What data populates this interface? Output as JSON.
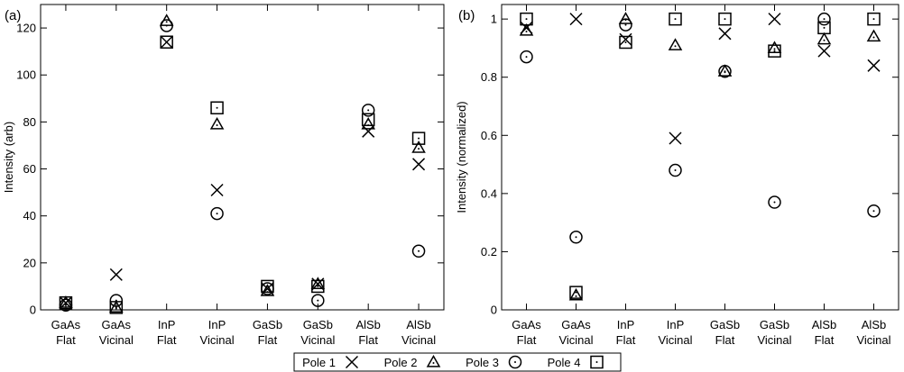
{
  "chart_data": [
    {
      "type": "scatter",
      "panel_label": "(a)",
      "ylabel": "Intensity (arb)",
      "ylim": [
        0,
        130
      ],
      "yticks": [
        0,
        20,
        40,
        60,
        80,
        100,
        120
      ],
      "grid": false,
      "categories": [
        [
          "GaAs",
          "Flat"
        ],
        [
          "GaAs",
          "Vicinal"
        ],
        [
          "InP",
          "Flat"
        ],
        [
          "InP",
          "Vicinal"
        ],
        [
          "GaSb",
          "Flat"
        ],
        [
          "GaSb",
          "Vicinal"
        ],
        [
          "AlSb",
          "Flat"
        ],
        [
          "AlSb",
          "Vicinal"
        ]
      ],
      "series": [
        {
          "name": "Pole 1",
          "marker": "cross",
          "values": [
            3,
            15,
            114,
            51,
            9,
            11,
            76,
            62
          ]
        },
        {
          "name": "Pole 2",
          "marker": "triangle",
          "values": [
            3,
            1,
            123,
            79,
            8,
            11,
            79,
            69
          ]
        },
        {
          "name": "Pole 3",
          "marker": "circle",
          "values": [
            2,
            4,
            121,
            41,
            9,
            4,
            85,
            25
          ]
        },
        {
          "name": "Pole 4",
          "marker": "square",
          "values": [
            3,
            1,
            114,
            86,
            10,
            10,
            81,
            73
          ]
        }
      ]
    },
    {
      "type": "scatter",
      "panel_label": "(b)",
      "ylabel": "Intensity (normalized)",
      "ylim": [
        0,
        1.05
      ],
      "yticks": [
        0,
        0.2,
        0.4,
        0.6,
        0.8,
        1
      ],
      "grid": false,
      "categories": [
        [
          "GaAs",
          "Flat"
        ],
        [
          "GaAs",
          "Vicinal"
        ],
        [
          "InP",
          "Flat"
        ],
        [
          "InP",
          "Vicinal"
        ],
        [
          "GaSb",
          "Flat"
        ],
        [
          "GaSb",
          "Vicinal"
        ],
        [
          "AlSb",
          "Flat"
        ],
        [
          "AlSb",
          "Vicinal"
        ]
      ],
      "series": [
        {
          "name": "Pole 1",
          "marker": "cross",
          "values": [
            0.97,
            1.0,
            0.93,
            0.59,
            0.95,
            1.0,
            0.89,
            0.84
          ]
        },
        {
          "name": "Pole 2",
          "marker": "triangle",
          "values": [
            0.96,
            0.05,
            1.0,
            0.91,
            0.82,
            0.9,
            0.93,
            0.94
          ]
        },
        {
          "name": "Pole 3",
          "marker": "circle",
          "values": [
            0.87,
            0.25,
            0.98,
            0.48,
            0.82,
            0.37,
            1.0,
            0.34
          ]
        },
        {
          "name": "Pole 4",
          "marker": "square",
          "values": [
            1.0,
            0.06,
            0.92,
            1.0,
            1.0,
            0.89,
            0.97,
            1.0
          ]
        }
      ]
    }
  ],
  "legend": {
    "placement": "bottom-center",
    "entries": [
      {
        "label": "Pole 1",
        "marker": "cross"
      },
      {
        "label": "Pole 2",
        "marker": "triangle"
      },
      {
        "label": "Pole 3",
        "marker": "circle"
      },
      {
        "label": "Pole 4",
        "marker": "square"
      }
    ]
  },
  "colors": {
    "ink": "#000000",
    "background": "#ffffff"
  }
}
